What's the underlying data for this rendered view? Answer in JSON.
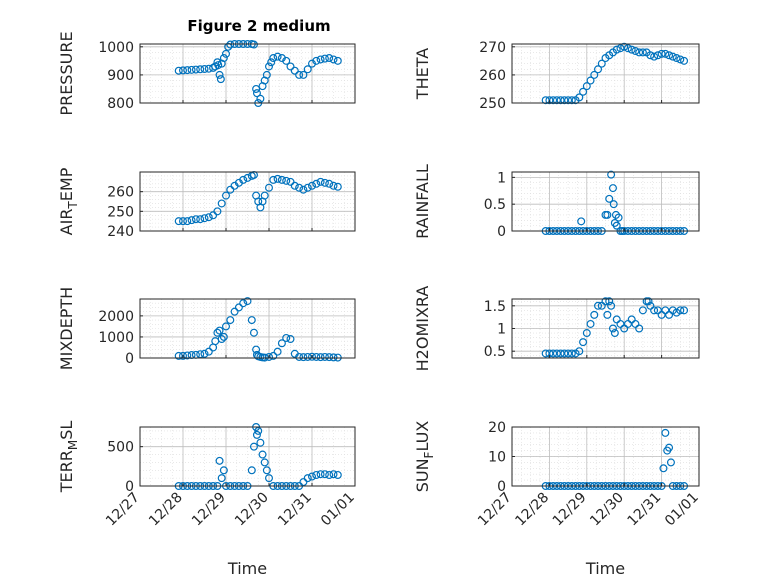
{
  "figure_title": "Figure 2 medium",
  "colors": {
    "marker": "#0072BD",
    "axis": "#262626",
    "grid": "#bdbdbd",
    "minor_grid": "#dcdcdc"
  },
  "x_tick_labels": [
    "12/27",
    "12/28",
    "12/29",
    "12/30",
    "12/31",
    "01/01"
  ],
  "chart_data": [
    {
      "type": "scatter",
      "id": "pressure",
      "title": "Figure 2 medium",
      "ylabel": "PRESSURE",
      "ylabel_sub": "",
      "ylim": [
        800,
        1010
      ],
      "yticks": [
        800,
        900,
        1000
      ],
      "xlim": [
        0,
        5
      ],
      "xlabel": "",
      "x": [
        0.9,
        1.0,
        1.1,
        1.2,
        1.3,
        1.4,
        1.5,
        1.6,
        1.7,
        1.75,
        1.8,
        1.82,
        1.85,
        1.88,
        1.9,
        1.95,
        2.0,
        2.05,
        2.1,
        2.2,
        2.3,
        2.4,
        2.5,
        2.6,
        2.65,
        2.7,
        2.72,
        2.75,
        2.8,
        2.85,
        2.9,
        2.95,
        3.0,
        3.05,
        3.1,
        3.2,
        3.3,
        3.4,
        3.5,
        3.6,
        3.7,
        3.8,
        3.9,
        4.0,
        4.1,
        4.2,
        4.3,
        4.4,
        4.5,
        4.6
      ],
      "y": [
        915,
        916,
        917,
        918,
        919,
        920,
        921,
        922,
        925,
        930,
        945,
        935,
        900,
        885,
        940,
        960,
        975,
        1000,
        1008,
        1010,
        1010,
        1010,
        1010,
        1010,
        1008,
        850,
        835,
        800,
        815,
        860,
        880,
        900,
        930,
        945,
        960,
        965,
        960,
        950,
        930,
        915,
        900,
        900,
        920,
        940,
        950,
        955,
        958,
        960,
        955,
        950
      ]
    },
    {
      "type": "scatter",
      "id": "theta",
      "ylabel": "THETA",
      "ylabel_sub": "",
      "ylim": [
        250,
        271
      ],
      "yticks": [
        250,
        260,
        270
      ],
      "xlim": [
        0,
        5
      ],
      "xlabel": "",
      "x": [
        0.9,
        1.0,
        1.1,
        1.2,
        1.3,
        1.4,
        1.5,
        1.6,
        1.7,
        1.8,
        1.9,
        2.0,
        2.1,
        2.2,
        2.3,
        2.4,
        2.5,
        2.6,
        2.7,
        2.8,
        2.9,
        3.0,
        3.1,
        3.2,
        3.3,
        3.4,
        3.5,
        3.6,
        3.7,
        3.8,
        3.9,
        4.0,
        4.1,
        4.2,
        4.3,
        4.4,
        4.5,
        4.6
      ],
      "y": [
        251,
        251,
        251,
        251,
        251,
        251,
        251,
        251,
        251,
        252,
        254,
        256,
        258,
        260,
        262,
        264,
        266,
        267,
        268,
        269,
        269.5,
        270,
        269.5,
        269,
        268.5,
        268,
        268,
        268,
        267,
        266.5,
        267,
        267.5,
        267.5,
        267,
        266.5,
        266,
        265.5,
        265
      ]
    },
    {
      "type": "scatter",
      "id": "air_temp",
      "ylabel": "AIR",
      "ylabel_sub": "T",
      "ylabel_after": "EMP",
      "ylim": [
        240,
        270
      ],
      "yticks": [
        240,
        250,
        260
      ],
      "xlim": [
        0,
        5
      ],
      "xlabel": "",
      "x": [
        0.9,
        1.0,
        1.1,
        1.2,
        1.3,
        1.4,
        1.5,
        1.6,
        1.7,
        1.8,
        1.9,
        2.0,
        2.1,
        2.2,
        2.3,
        2.4,
        2.5,
        2.6,
        2.65,
        2.7,
        2.75,
        2.8,
        2.85,
        2.9,
        3.0,
        3.1,
        3.2,
        3.3,
        3.4,
        3.5,
        3.6,
        3.7,
        3.8,
        3.9,
        4.0,
        4.1,
        4.2,
        4.3,
        4.4,
        4.5,
        4.6
      ],
      "y": [
        245,
        245,
        245,
        245.5,
        246,
        246,
        246.5,
        247,
        248,
        250,
        254,
        258,
        261,
        263,
        264.5,
        266,
        267,
        268,
        268.5,
        258,
        255,
        252,
        255,
        258,
        262,
        266,
        266.5,
        266,
        265.5,
        265,
        263,
        262,
        261,
        262,
        263,
        264,
        265,
        264.5,
        264,
        263,
        262.5
      ]
    },
    {
      "type": "scatter",
      "id": "rainfall",
      "ylabel": "RAINFALL",
      "ylabel_sub": "",
      "ylim": [
        0,
        1.1
      ],
      "yticks": [
        0,
        0.5,
        1
      ],
      "xlim": [
        0,
        5
      ],
      "xlabel": "",
      "x": [
        0.9,
        1.0,
        1.1,
        1.2,
        1.3,
        1.4,
        1.5,
        1.6,
        1.7,
        1.8,
        1.85,
        1.9,
        2.0,
        2.1,
        2.2,
        2.3,
        2.4,
        2.5,
        2.55,
        2.6,
        2.65,
        2.7,
        2.72,
        2.75,
        2.78,
        2.8,
        2.85,
        2.9,
        2.95,
        3.0,
        3.1,
        3.2,
        3.3,
        3.4,
        3.5,
        3.6,
        3.7,
        3.8,
        3.9,
        4.0,
        4.1,
        4.2,
        4.3,
        4.4,
        4.5,
        4.6
      ],
      "y": [
        0,
        0,
        0,
        0,
        0,
        0,
        0,
        0,
        0,
        0,
        0.18,
        0,
        0,
        0,
        0,
        0,
        0,
        0.3,
        0.3,
        0.6,
        1.05,
        0.8,
        0.5,
        0.15,
        0.3,
        0.1,
        0.25,
        0,
        0,
        0,
        0,
        0,
        0,
        0,
        0,
        0,
        0,
        0,
        0,
        0,
        0,
        0,
        0,
        0,
        0,
        0
      ]
    },
    {
      "type": "scatter",
      "id": "mixdepth",
      "ylabel": "MIXDEPTH",
      "ylabel_sub": "",
      "ylim": [
        0,
        2800
      ],
      "yticks": [
        0,
        1000,
        2000
      ],
      "xlim": [
        0,
        5
      ],
      "xlabel": "",
      "x": [
        0.9,
        1.0,
        1.1,
        1.2,
        1.3,
        1.4,
        1.5,
        1.6,
        1.7,
        1.75,
        1.8,
        1.85,
        1.9,
        1.95,
        2.0,
        2.1,
        2.2,
        2.3,
        2.4,
        2.5,
        2.6,
        2.65,
        2.7,
        2.72,
        2.75,
        2.8,
        2.85,
        2.9,
        3.0,
        3.1,
        3.2,
        3.3,
        3.4,
        3.5,
        3.6,
        3.7,
        3.8,
        3.9,
        4.0,
        4.1,
        4.2,
        4.3,
        4.4,
        4.5,
        4.6
      ],
      "y": [
        100,
        100,
        120,
        140,
        150,
        180,
        200,
        300,
        500,
        800,
        1200,
        1300,
        900,
        1000,
        1500,
        1800,
        2200,
        2400,
        2600,
        2700,
        1800,
        1200,
        400,
        150,
        80,
        50,
        30,
        20,
        50,
        100,
        300,
        700,
        950,
        900,
        200,
        50,
        40,
        50,
        60,
        50,
        40,
        50,
        40,
        30,
        20
      ]
    },
    {
      "type": "scatter",
      "id": "h2omixra",
      "ylabel": "H2OMIXRA",
      "ylabel_sub": "",
      "ylim": [
        0.35,
        1.65
      ],
      "yticks": [
        0.5,
        1,
        1.5
      ],
      "xlim": [
        0,
        5
      ],
      "xlabel": "",
      "x": [
        0.9,
        1.0,
        1.1,
        1.2,
        1.3,
        1.4,
        1.5,
        1.6,
        1.7,
        1.8,
        1.9,
        2.0,
        2.1,
        2.2,
        2.3,
        2.4,
        2.5,
        2.55,
        2.6,
        2.65,
        2.7,
        2.75,
        2.8,
        2.9,
        3.0,
        3.1,
        3.2,
        3.3,
        3.4,
        3.5,
        3.6,
        3.65,
        3.7,
        3.8,
        3.9,
        4.0,
        4.1,
        4.2,
        4.3,
        4.4,
        4.5,
        4.6
      ],
      "y": [
        0.45,
        0.45,
        0.45,
        0.45,
        0.45,
        0.45,
        0.45,
        0.45,
        0.45,
        0.5,
        0.7,
        0.9,
        1.1,
        1.3,
        1.5,
        1.5,
        1.6,
        1.3,
        1.6,
        1.5,
        1.0,
        0.9,
        1.2,
        1.1,
        1.0,
        1.1,
        1.2,
        1.1,
        1.0,
        1.4,
        1.6,
        1.6,
        1.5,
        1.4,
        1.4,
        1.3,
        1.4,
        1.3,
        1.4,
        1.35,
        1.4,
        1.4
      ]
    },
    {
      "type": "scatter",
      "id": "terr_msl",
      "ylabel": "TERR",
      "ylabel_sub": "M",
      "ylabel_after": "SL",
      "ylim": [
        0,
        750
      ],
      "yticks": [
        0,
        500
      ],
      "xlim": [
        0,
        5
      ],
      "xlabel": "Time",
      "x": [
        0.9,
        1.0,
        1.1,
        1.2,
        1.3,
        1.4,
        1.5,
        1.6,
        1.7,
        1.8,
        1.85,
        1.9,
        1.95,
        2.0,
        2.1,
        2.2,
        2.3,
        2.4,
        2.5,
        2.6,
        2.65,
        2.7,
        2.72,
        2.75,
        2.8,
        2.85,
        2.9,
        2.95,
        3.0,
        3.1,
        3.2,
        3.3,
        3.4,
        3.5,
        3.6,
        3.7,
        3.8,
        3.9,
        4.0,
        4.1,
        4.2,
        4.3,
        4.4,
        4.5,
        4.6
      ],
      "y": [
        0,
        0,
        0,
        0,
        0,
        0,
        0,
        0,
        0,
        0,
        320,
        100,
        200,
        0,
        0,
        0,
        0,
        0,
        0,
        200,
        500,
        750,
        650,
        700,
        550,
        400,
        300,
        200,
        100,
        0,
        0,
        0,
        0,
        0,
        0,
        0,
        50,
        100,
        120,
        140,
        150,
        150,
        140,
        150,
        140
      ]
    },
    {
      "type": "scatter",
      "id": "sun_flux",
      "ylabel": "SUN",
      "ylabel_sub": "F",
      "ylabel_after": "LUX",
      "ylim": [
        0,
        20
      ],
      "yticks": [
        0,
        10,
        20
      ],
      "xlim": [
        0,
        5
      ],
      "xlabel": "Time",
      "x": [
        0.9,
        1.0,
        1.1,
        1.2,
        1.3,
        1.4,
        1.5,
        1.6,
        1.7,
        1.8,
        1.9,
        2.0,
        2.1,
        2.2,
        2.3,
        2.4,
        2.5,
        2.6,
        2.7,
        2.8,
        2.9,
        3.0,
        3.1,
        3.2,
        3.3,
        3.4,
        3.5,
        3.6,
        3.7,
        3.8,
        3.9,
        4.0,
        4.05,
        4.1,
        4.15,
        4.2,
        4.25,
        4.3,
        4.4,
        4.5,
        4.6
      ],
      "y": [
        0,
        0,
        0,
        0,
        0,
        0,
        0,
        0,
        0,
        0,
        0,
        0,
        0,
        0,
        0,
        0,
        0,
        0,
        0,
        0,
        0,
        0,
        0,
        0,
        0,
        0,
        0,
        0,
        0,
        0,
        0,
        0,
        6,
        18,
        12,
        13,
        8,
        0,
        0,
        0,
        0
      ]
    }
  ]
}
